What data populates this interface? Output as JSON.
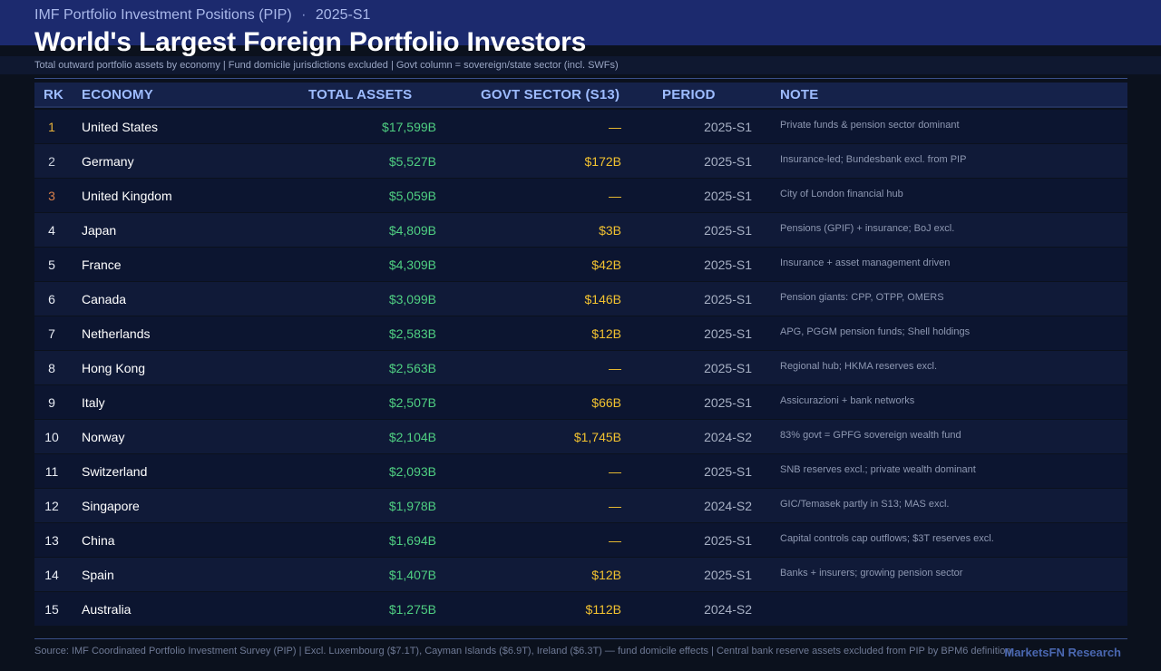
{
  "header": {
    "kicker": "IMF Portfolio Investment Positions (PIP)",
    "kicker_sep": "·",
    "kicker_period": "2025-S1",
    "title": "World's Largest Foreign Portfolio Investors",
    "subtitle": "Total outward portfolio assets by economy  |  Fund domicile jurisdictions excluded  |  Govt column = sovereign/state sector (incl. SWFs)"
  },
  "table": {
    "columns": {
      "rank": "RK",
      "economy": "ECONOMY",
      "total": "TOTAL ASSETS",
      "govt": "GOVT SECTOR (S13)",
      "period": "PERIOD",
      "note": "NOTE"
    },
    "rows": [
      {
        "rank": "1",
        "economy": "United States",
        "total": "$17,599B",
        "govt": "—",
        "period": "2025-S1",
        "note": "Private funds & pension sector dominant"
      },
      {
        "rank": "2",
        "economy": "Germany",
        "total": "$5,527B",
        "govt": "$172B",
        "period": "2025-S1",
        "note": "Insurance-led; Bundesbank excl. from PIP"
      },
      {
        "rank": "3",
        "economy": "United Kingdom",
        "total": "$5,059B",
        "govt": "—",
        "period": "2025-S1",
        "note": "City of London financial hub"
      },
      {
        "rank": "4",
        "economy": "Japan",
        "total": "$4,809B",
        "govt": "$3B",
        "period": "2025-S1",
        "note": "Pensions (GPIF) + insurance; BoJ excl."
      },
      {
        "rank": "5",
        "economy": "France",
        "total": "$4,309B",
        "govt": "$42B",
        "period": "2025-S1",
        "note": "Insurance + asset management driven"
      },
      {
        "rank": "6",
        "economy": "Canada",
        "total": "$3,099B",
        "govt": "$146B",
        "period": "2025-S1",
        "note": "Pension giants: CPP, OTPP, OMERS"
      },
      {
        "rank": "7",
        "economy": "Netherlands",
        "total": "$2,583B",
        "govt": "$12B",
        "period": "2025-S1",
        "note": "APG, PGGM pension funds; Shell holdings"
      },
      {
        "rank": "8",
        "economy": "Hong Kong",
        "total": "$2,563B",
        "govt": "—",
        "period": "2025-S1",
        "note": "Regional hub; HKMA reserves excl."
      },
      {
        "rank": "9",
        "economy": "Italy",
        "total": "$2,507B",
        "govt": "$66B",
        "period": "2025-S1",
        "note": "Assicurazioni + bank networks"
      },
      {
        "rank": "10",
        "economy": "Norway",
        "total": "$2,104B",
        "govt": "$1,745B",
        "period": "2024-S2",
        "note": "83% govt = GPFG sovereign wealth fund"
      },
      {
        "rank": "11",
        "economy": "Switzerland",
        "total": "$2,093B",
        "govt": "—",
        "period": "2025-S1",
        "note": "SNB reserves excl.; private wealth dominant"
      },
      {
        "rank": "12",
        "economy": "Singapore",
        "total": "$1,978B",
        "govt": "—",
        "period": "2024-S2",
        "note": "GIC/Temasek partly in S13; MAS excl."
      },
      {
        "rank": "13",
        "economy": "China",
        "total": "$1,694B",
        "govt": "—",
        "period": "2025-S1",
        "note": "Capital controls cap outflows; $3T reserves excl."
      },
      {
        "rank": "14",
        "economy": "Spain",
        "total": "$1,407B",
        "govt": "$12B",
        "period": "2025-S1",
        "note": "Banks + insurers; growing pension sector"
      },
      {
        "rank": "15",
        "economy": "Australia",
        "total": "$1,275B",
        "govt": "$112B",
        "period": "2024-S2",
        "note": ""
      }
    ]
  },
  "footer": {
    "source": "Source: IMF Coordinated Portfolio Investment Survey (PIP)  |  Excl. Luxembourg ($7.1T), Cayman Islands ($6.9T), Ireland ($6.3T) — fund domicile effects  |  Central bank reserve assets excluded from PIP by BPM6 definition",
    "brand": "MarketsFN Research"
  },
  "colors": {
    "header_band": "#1c2a6e",
    "total_green": "#4fcf82",
    "govt_gold": "#f2c230",
    "rank1_gold": "#e8b23a",
    "rank3_bronze": "#d9804a",
    "column_header": "#9ebcff"
  }
}
